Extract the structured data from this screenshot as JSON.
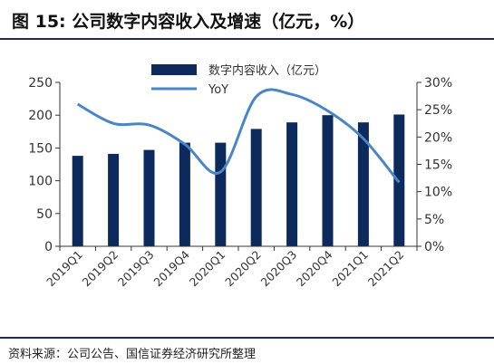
{
  "header": {
    "title": "图 15:  公司数字内容收入及增速（亿元，%）"
  },
  "footer": {
    "source": "资料来源：公司公告、国信证券经济研究所整理"
  },
  "colors": {
    "bar": "#0d2a5c",
    "line": "#4a86c5",
    "axis": "#333333",
    "rule": "#1f2d4a"
  },
  "chart_data": {
    "type": "bar",
    "categories": [
      "2019Q1",
      "2019Q2",
      "2019Q3",
      "2019Q4",
      "2020Q1",
      "2020Q2",
      "2020Q3",
      "2020Q4",
      "2021Q1",
      "2021Q2"
    ],
    "series": [
      {
        "name": "数字内容收入（亿元）",
        "type": "bar",
        "axis": "left",
        "values": [
          138,
          141,
          147,
          158,
          158,
          179,
          189,
          200,
          189,
          201
        ]
      },
      {
        "name": "YoY",
        "type": "line",
        "axis": "right",
        "values": [
          26.0,
          22.5,
          22.2,
          18.7,
          13.6,
          27.4,
          27.8,
          24.8,
          19.7,
          11.7
        ]
      }
    ],
    "ylim": [
      0,
      250
    ],
    "yticks": [
      0,
      50,
      100,
      150,
      200,
      250
    ],
    "y2lim": [
      0,
      30
    ],
    "y2ticks": [
      "0%",
      "5%",
      "10%",
      "15%",
      "20%",
      "25%",
      "30%"
    ],
    "legend_position": "top"
  }
}
